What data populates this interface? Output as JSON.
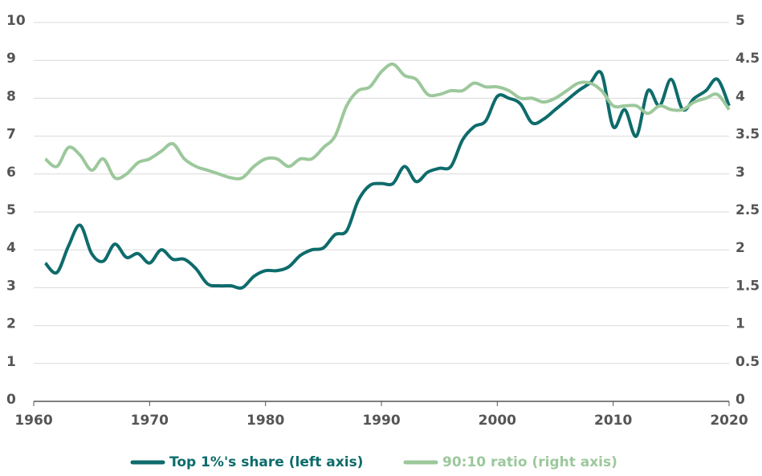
{
  "chart_data": {
    "type": "line",
    "x": [
      1961,
      1962,
      1963,
      1964,
      1965,
      1966,
      1967,
      1968,
      1969,
      1970,
      1971,
      1972,
      1973,
      1974,
      1975,
      1976,
      1977,
      1978,
      1979,
      1980,
      1981,
      1982,
      1983,
      1984,
      1985,
      1986,
      1987,
      1988,
      1989,
      1990,
      1991,
      1992,
      1993,
      1994,
      1995,
      1996,
      1997,
      1998,
      1999,
      2000,
      2001,
      2002,
      2003,
      2004,
      2005,
      2006,
      2007,
      2008,
      2009,
      2010,
      2011,
      2012,
      2013,
      2014,
      2015,
      2016,
      2017,
      2018,
      2019,
      2020
    ],
    "series": [
      {
        "name": "Top 1%'s share (left axis)",
        "color": "#0e6b6b",
        "axis": "y",
        "values": [
          3.65,
          3.4,
          4.1,
          4.65,
          3.9,
          3.7,
          4.15,
          3.8,
          3.9,
          3.65,
          4.0,
          3.75,
          3.75,
          3.5,
          3.1,
          3.05,
          3.05,
          3.0,
          3.3,
          3.45,
          3.45,
          3.55,
          3.85,
          4.0,
          4.05,
          4.4,
          4.5,
          5.3,
          5.7,
          5.75,
          5.75,
          6.2,
          5.8,
          6.05,
          6.15,
          6.2,
          6.9,
          7.25,
          7.4,
          8.05,
          8.0,
          7.85,
          7.35,
          7.45,
          7.7,
          7.95,
          8.2,
          8.4,
          8.65,
          7.25,
          7.7,
          7.0,
          8.2,
          7.8,
          8.5,
          7.7,
          8.0,
          8.2,
          8.5,
          7.8
        ]
      },
      {
        "name": "90:10 ratio (right axis)",
        "color": "#9cc89c",
        "axis": "y2",
        "values": [
          3.2,
          3.1,
          3.35,
          3.25,
          3.05,
          3.2,
          2.95,
          3.0,
          3.15,
          3.2,
          3.3,
          3.4,
          3.2,
          3.1,
          3.05,
          3.0,
          2.95,
          2.95,
          3.1,
          3.2,
          3.2,
          3.1,
          3.2,
          3.2,
          3.35,
          3.5,
          3.9,
          4.1,
          4.15,
          4.35,
          4.45,
          4.3,
          4.25,
          4.05,
          4.05,
          4.1,
          4.1,
          4.2,
          4.15,
          4.15,
          4.1,
          4.0,
          4.0,
          3.95,
          4.0,
          4.1,
          4.2,
          4.2,
          4.1,
          3.9,
          3.9,
          3.9,
          3.8,
          3.9,
          3.85,
          3.85,
          3.95,
          4.0,
          4.05,
          3.85
        ]
      }
    ],
    "xlim": [
      1960,
      2020
    ],
    "xticks": [
      1960,
      1970,
      1980,
      1990,
      2000,
      2010,
      2020
    ],
    "ylim": [
      0,
      10
    ],
    "yticks": [
      0,
      1,
      2,
      3,
      4,
      5,
      6,
      7,
      8,
      9,
      10
    ],
    "y2lim": [
      0,
      5
    ],
    "y2ticks": [
      0,
      0.5,
      1,
      1.5,
      2,
      2.5,
      3,
      3.5,
      4,
      4.5,
      5
    ],
    "grid": true,
    "legend": "bottom"
  }
}
